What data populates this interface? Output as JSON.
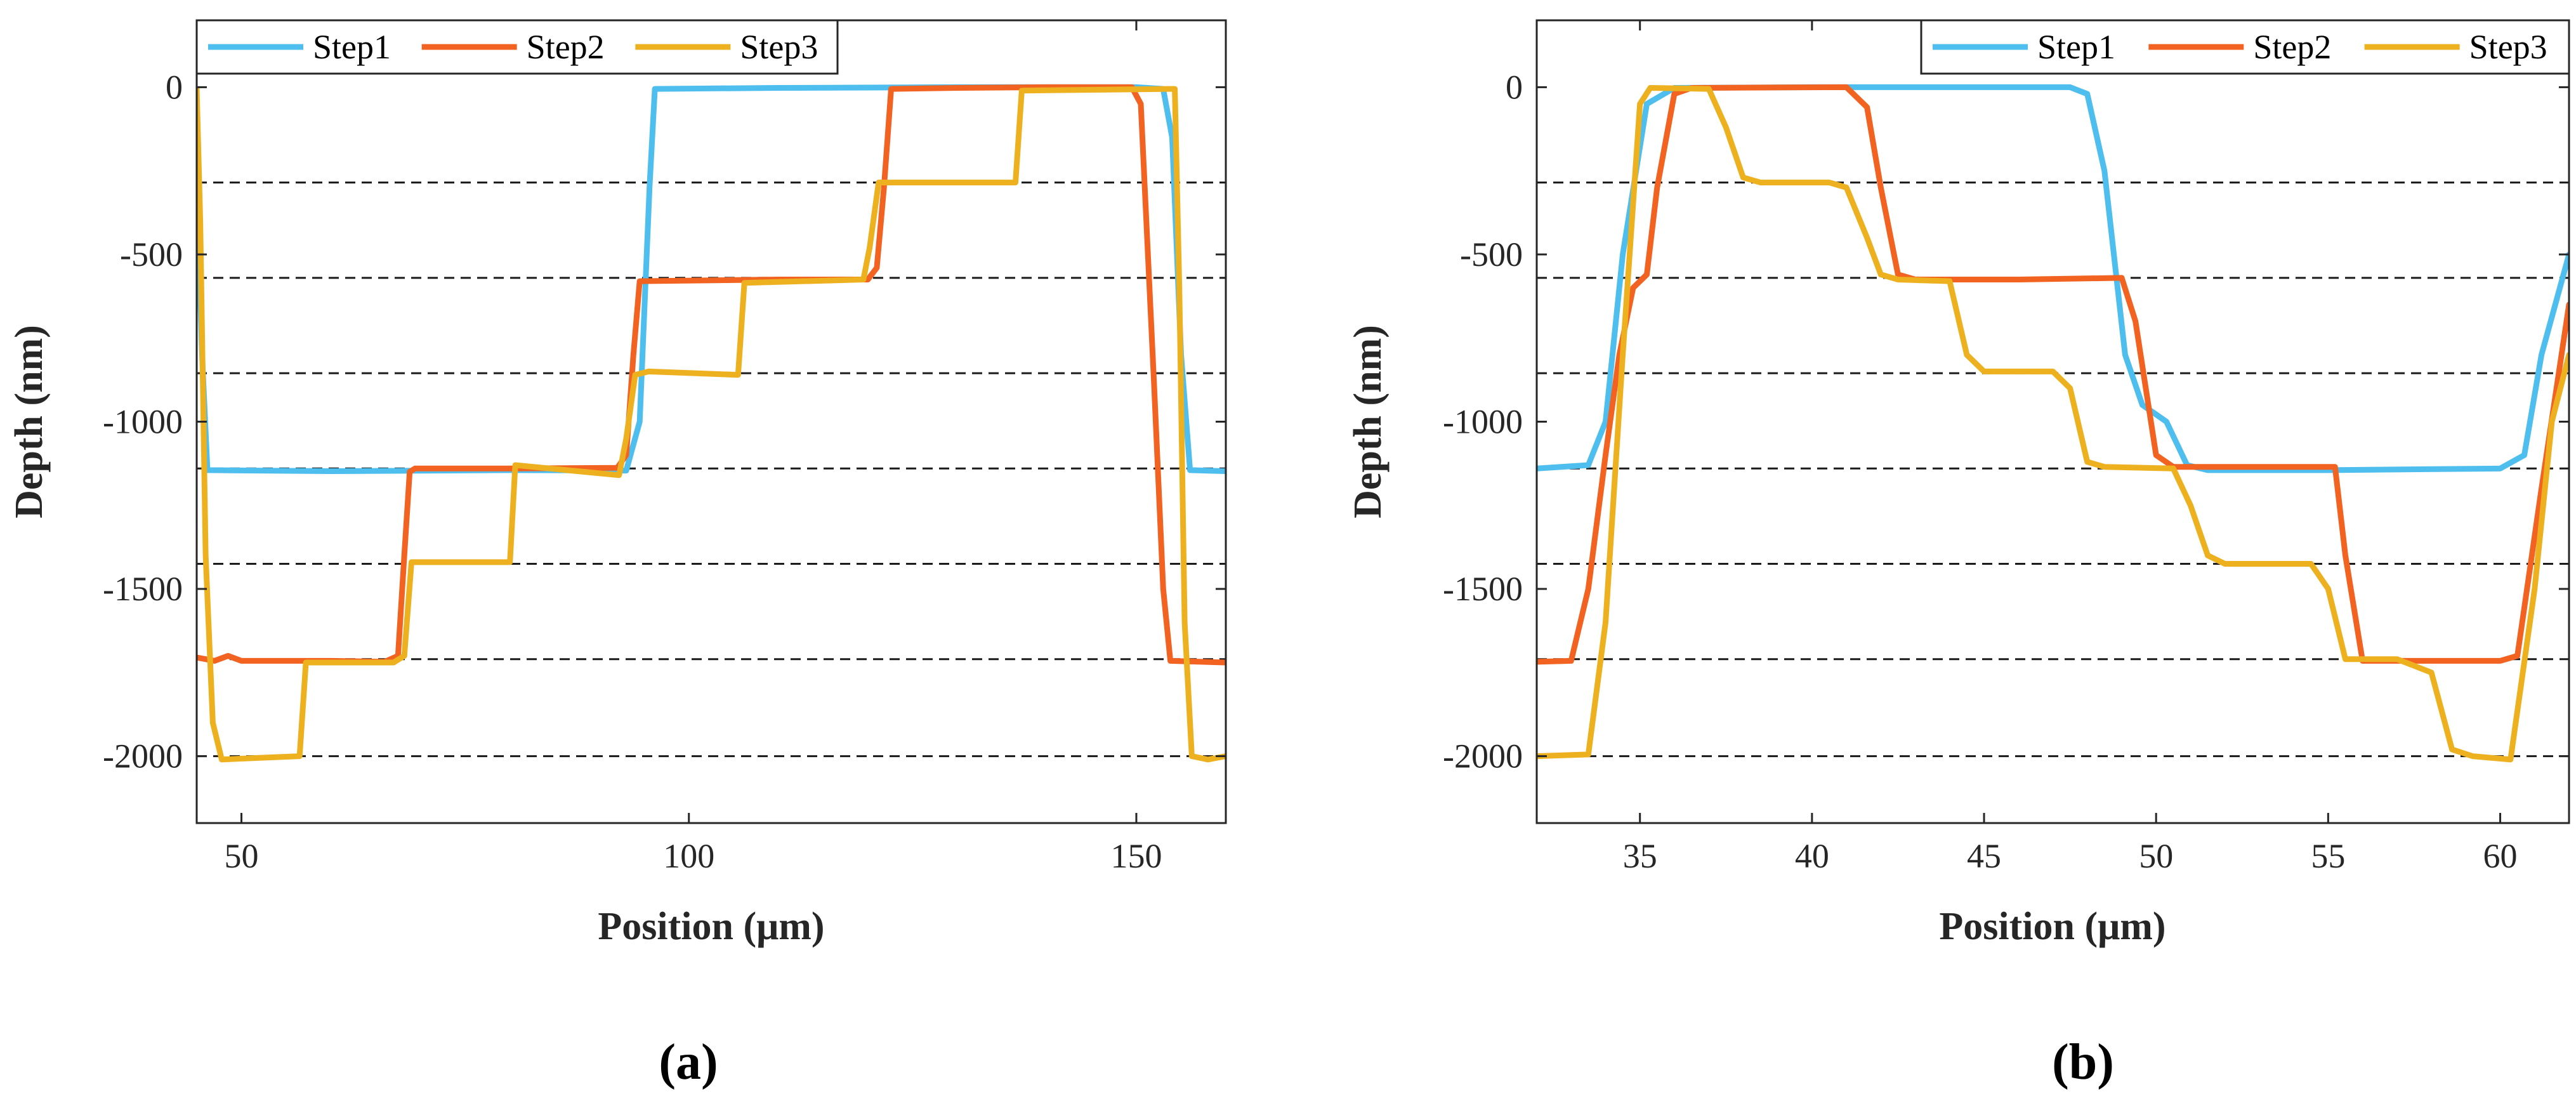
{
  "chart_data": [
    {
      "type": "line",
      "panel_caption": "(a)",
      "xlabel": "Position (μm)",
      "ylabel": "Depth (nm)",
      "xlim": [
        45,
        160
      ],
      "ylim": [
        -2200,
        200
      ],
      "xticks": [
        50,
        100,
        150
      ],
      "yticks": [
        0,
        -500,
        -1000,
        -1500,
        -2000
      ],
      "ytick_labels": [
        "0",
        "-500",
        "-1000",
        "-1500",
        "-2000"
      ],
      "reference_lines_y": [
        -285,
        -570,
        -855,
        -1140,
        -1425,
        -1710,
        -2000
      ],
      "legend": [
        "Step1",
        "Step2",
        "Step3"
      ],
      "series": [
        {
          "name": "Step1",
          "color": "#4DBEEE",
          "points": [
            [
              45,
              -300
            ],
            [
              45.6,
              -800
            ],
            [
              46.2,
              -1145
            ],
            [
              60,
              -1148
            ],
            [
              80,
              -1145
            ],
            [
              93,
              -1146
            ],
            [
              94.5,
              -1000
            ],
            [
              95.6,
              -300
            ],
            [
              96.2,
              -5
            ],
            [
              110,
              -2
            ],
            [
              130,
              0
            ],
            [
              150,
              0
            ],
            [
              153,
              -5
            ],
            [
              154,
              -150
            ],
            [
              155,
              -800
            ],
            [
              156,
              -1145
            ],
            [
              160,
              -1148
            ]
          ]
        },
        {
          "name": "Step2",
          "color": "#F26322",
          "points": [
            [
              45,
              -1705
            ],
            [
              47,
              -1715
            ],
            [
              48.5,
              -1700
            ],
            [
              50,
              -1715
            ],
            [
              60,
              -1715
            ],
            [
              66,
              -1718
            ],
            [
              67.5,
              -1700
            ],
            [
              68.2,
              -1400
            ],
            [
              68.8,
              -1150
            ],
            [
              69.4,
              -1140
            ],
            [
              80,
              -1140
            ],
            [
              92,
              -1138
            ],
            [
              93,
              -1100
            ],
            [
              93.8,
              -800
            ],
            [
              94.5,
              -580
            ],
            [
              110,
              -575
            ],
            [
              120,
              -575
            ],
            [
              121,
              -540
            ],
            [
              121.8,
              -300
            ],
            [
              122.6,
              -5
            ],
            [
              130,
              -2
            ],
            [
              140,
              0
            ],
            [
              149.5,
              0
            ],
            [
              150.5,
              -50
            ],
            [
              152,
              -900
            ],
            [
              153,
              -1500
            ],
            [
              153.8,
              -1715
            ],
            [
              160,
              -1720
            ]
          ]
        },
        {
          "name": "Step3",
          "color": "#EDB120",
          "points": [
            [
              45,
              -5
            ],
            [
              45.4,
              -400
            ],
            [
              46,
              -1400
            ],
            [
              46.8,
              -1900
            ],
            [
              47.8,
              -2010
            ],
            [
              52,
              -2005
            ],
            [
              56.5,
              -2000
            ],
            [
              57.2,
              -1720
            ],
            [
              67,
              -1720
            ],
            [
              68.2,
              -1700
            ],
            [
              69,
              -1420
            ],
            [
              80,
              -1420
            ],
            [
              80.6,
              -1130
            ],
            [
              92.2,
              -1160
            ],
            [
              93,
              -1050
            ],
            [
              94,
              -860
            ],
            [
              95.5,
              -850
            ],
            [
              105.5,
              -860
            ],
            [
              106.2,
              -585
            ],
            [
              119.5,
              -575
            ],
            [
              120.2,
              -480
            ],
            [
              121.2,
              -285
            ],
            [
              136.5,
              -285
            ],
            [
              137.2,
              -10
            ],
            [
              153.8,
              -5
            ],
            [
              154.3,
              -5
            ],
            [
              154.8,
              -600
            ],
            [
              155.4,
              -1600
            ],
            [
              156.2,
              -2000
            ],
            [
              158,
              -2010
            ],
            [
              160,
              -2000
            ]
          ]
        }
      ]
    },
    {
      "type": "line",
      "panel_caption": "(b)",
      "xlabel": "Position (μm)",
      "ylabel": "Depth (nm)",
      "xlim": [
        32,
        62
      ],
      "ylim": [
        -2200,
        200
      ],
      "xticks": [
        35,
        40,
        45,
        50,
        55,
        60
      ],
      "yticks": [
        0,
        -500,
        -1000,
        -1500,
        -2000
      ],
      "ytick_labels": [
        "0",
        "-500",
        "-1000",
        "-1500",
        "-2000"
      ],
      "reference_lines_y": [
        -285,
        -570,
        -855,
        -1140,
        -1425,
        -1710,
        -2000
      ],
      "legend": [
        "Step1",
        "Step2",
        "Step3"
      ],
      "series": [
        {
          "name": "Step1",
          "color": "#4DBEEE",
          "points": [
            [
              32,
              -1140
            ],
            [
              33.5,
              -1130
            ],
            [
              34,
              -1000
            ],
            [
              34.5,
              -500
            ],
            [
              35.2,
              -50
            ],
            [
              36,
              -2
            ],
            [
              40,
              0
            ],
            [
              45,
              0
            ],
            [
              47.5,
              0
            ],
            [
              48,
              -20
            ],
            [
              48.5,
              -250
            ],
            [
              49.1,
              -800
            ],
            [
              49.6,
              -950
            ],
            [
              50.3,
              -1000
            ],
            [
              50.9,
              -1130
            ],
            [
              51.5,
              -1145
            ],
            [
              55,
              -1145
            ],
            [
              60,
              -1140
            ],
            [
              60.7,
              -1100
            ],
            [
              61.2,
              -800
            ],
            [
              62,
              -500
            ]
          ]
        },
        {
          "name": "Step2",
          "color": "#F26322",
          "points": [
            [
              32,
              -1718
            ],
            [
              33,
              -1715
            ],
            [
              33.5,
              -1500
            ],
            [
              34,
              -1100
            ],
            [
              34.4,
              -800
            ],
            [
              34.8,
              -600
            ],
            [
              35.2,
              -560
            ],
            [
              35.5,
              -300
            ],
            [
              36,
              -20
            ],
            [
              36.5,
              -2
            ],
            [
              41,
              0
            ],
            [
              41.6,
              -60
            ],
            [
              42,
              -300
            ],
            [
              42.5,
              -560
            ],
            [
              43,
              -575
            ],
            [
              46,
              -575
            ],
            [
              49,
              -570
            ],
            [
              49.4,
              -700
            ],
            [
              50,
              -1100
            ],
            [
              50.5,
              -1135
            ],
            [
              55.2,
              -1135
            ],
            [
              55.5,
              -1400
            ],
            [
              56,
              -1715
            ],
            [
              60,
              -1715
            ],
            [
              60.5,
              -1700
            ],
            [
              61.2,
              -1200
            ],
            [
              62,
              -650
            ]
          ]
        },
        {
          "name": "Step3",
          "color": "#EDB120",
          "points": [
            [
              32,
              -2000
            ],
            [
              33.5,
              -1995
            ],
            [
              34,
              -1600
            ],
            [
              34.5,
              -800
            ],
            [
              35,
              -50
            ],
            [
              35.3,
              -2
            ],
            [
              37,
              -5
            ],
            [
              37.5,
              -120
            ],
            [
              38,
              -270
            ],
            [
              38.5,
              -285
            ],
            [
              40.5,
              -285
            ],
            [
              41,
              -300
            ],
            [
              41.6,
              -450
            ],
            [
              42,
              -560
            ],
            [
              42.5,
              -575
            ],
            [
              44,
              -580
            ],
            [
              44.5,
              -800
            ],
            [
              45,
              -850
            ],
            [
              47,
              -850
            ],
            [
              47.5,
              -900
            ],
            [
              48,
              -1120
            ],
            [
              48.5,
              -1135
            ],
            [
              50.5,
              -1140
            ],
            [
              51,
              -1250
            ],
            [
              51.5,
              -1400
            ],
            [
              52,
              -1425
            ],
            [
              54.5,
              -1425
            ],
            [
              55,
              -1500
            ],
            [
              55.5,
              -1710
            ],
            [
              57,
              -1710
            ],
            [
              58,
              -1750
            ],
            [
              58.6,
              -1980
            ],
            [
              59.2,
              -2000
            ],
            [
              60.3,
              -2010
            ],
            [
              61,
              -1500
            ],
            [
              61.5,
              -1000
            ],
            [
              62,
              -800
            ]
          ]
        }
      ]
    }
  ]
}
